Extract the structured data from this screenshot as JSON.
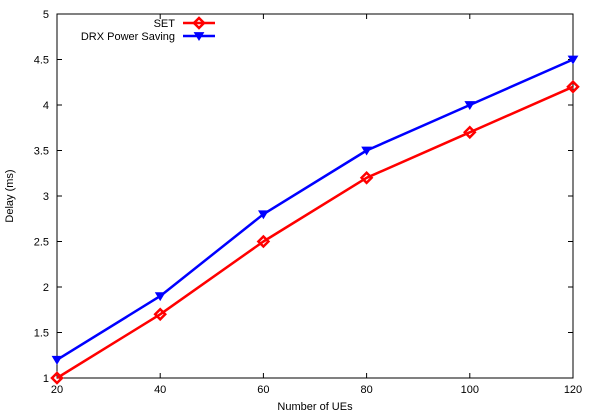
{
  "chart_data": {
    "type": "line",
    "title": "",
    "xlabel": "Number of UEs",
    "ylabel": "Delay (ms)",
    "x": [
      20,
      40,
      60,
      80,
      100,
      120
    ],
    "xlim": [
      20,
      120
    ],
    "ylim": [
      1,
      5
    ],
    "xticks": [
      "20",
      "40",
      "60",
      "80",
      "100",
      "120"
    ],
    "yticks": [
      "1",
      "1.5",
      "2",
      "2.5",
      "3",
      "3.5",
      "4",
      "4.5",
      "5"
    ],
    "grid": false,
    "legend_position": "top-left",
    "series": [
      {
        "name": "SET",
        "color": "#ff0000",
        "marker": "diamond",
        "values": [
          1.0,
          1.7,
          2.5,
          3.2,
          3.7,
          4.2
        ]
      },
      {
        "name": "DRX Power Saving",
        "color": "#0000ff",
        "marker": "triangle-down",
        "values": [
          1.2,
          1.9,
          2.8,
          3.5,
          4.0,
          4.5
        ]
      }
    ]
  }
}
